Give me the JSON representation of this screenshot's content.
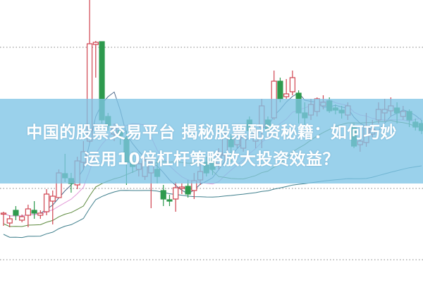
{
  "headline": {
    "line1": "中国的股票交易平台 揭秘股票配资秘籍：如何巧妙",
    "line2": "运用10倍杠杆策略放大投资效益？"
  },
  "colors": {
    "up": "#d0434f",
    "down": "#2e9a4e",
    "banner": "#7dc4e6",
    "ma_short": "#4e6a8c",
    "ma_mid": "#e39ad8",
    "ma_long": "#5d8a3e",
    "ma_longest": "#3f7f8c",
    "grid": "#9a9a9a"
  },
  "chart_data": {
    "type": "candlestick",
    "grid": "horizontal dotted",
    "candles_ohlc": [
      [
        9.8,
        9.8,
        10,
        8
      ],
      [
        8.4,
        9,
        9.5,
        7.8
      ],
      [
        10.2,
        9.5,
        10.8,
        8.8
      ],
      [
        8.8,
        9.3,
        9.6,
        8.5
      ],
      [
        9.5,
        10.4,
        11,
        7.8
      ],
      [
        10.2,
        9.8,
        11.5,
        9
      ],
      [
        9.5,
        9.8,
        10.2,
        9
      ],
      [
        10,
        12.5,
        13.2,
        9.5
      ],
      [
        11.5,
        12.2,
        13,
        8.2
      ],
      [
        12,
        15.5,
        16,
        12
      ],
      [
        15.4,
        14.8,
        18.2,
        14.2
      ],
      [
        14.7,
        14,
        15.5,
        12.7
      ],
      [
        13.8,
        17.2,
        17.8,
        13.2
      ],
      [
        17,
        18.5,
        20,
        16
      ],
      [
        20,
        33.8,
        40,
        19.8
      ],
      [
        33.7,
        34,
        34.2,
        29
      ],
      [
        34.1,
        23,
        34.1,
        22.5
      ],
      [
        23.5,
        22.2,
        24,
        21.5
      ],
      [
        21,
        21.8,
        22.5,
        20
      ],
      [
        21.5,
        20.8,
        22.2,
        19.5
      ],
      [
        20.5,
        17,
        21.5,
        13.8
      ],
      [
        17,
        16.4,
        18.5,
        15.5
      ],
      [
        16,
        16.8,
        17.5,
        15
      ],
      [
        15,
        17.2,
        17.8,
        14.5
      ],
      [
        15.5,
        17,
        17.4,
        10.5
      ],
      [
        16,
        15,
        17.5,
        14
      ],
      [
        13,
        11.8,
        13.8,
        10.8
      ],
      [
        11.7,
        11.5,
        12.4,
        10.8
      ],
      [
        11.8,
        13.4,
        14.2,
        10
      ],
      [
        13.3,
        13.5,
        14,
        12.5
      ],
      [
        13.6,
        12.5,
        14.5,
        12
      ],
      [
        13,
        14.4,
        15.5,
        11.8
      ],
      [
        14.5,
        15.7,
        17,
        13.8
      ],
      [
        17,
        15.5,
        17.8,
        15
      ],
      [
        17.5,
        16,
        18.2,
        15.2
      ],
      [
        16.8,
        18.2,
        19,
        16
      ],
      [
        18,
        20.5,
        21.5,
        17.2
      ],
      [
        20.5,
        19.2,
        21,
        17
      ],
      [
        19.5,
        20.8,
        21.5,
        19
      ],
      [
        19,
        20.5,
        21.2,
        18.5
      ],
      [
        23,
        21.5,
        23.5,
        21
      ],
      [
        20,
        21.5,
        22,
        19
      ],
      [
        22,
        25,
        26,
        19
      ],
      [
        23,
        21.5,
        23.5,
        21
      ],
      [
        23.3,
        28.5,
        30,
        23
      ],
      [
        28.5,
        26,
        29,
        25.5
      ],
      [
        26.3,
        26.7,
        28.8,
        26
      ],
      [
        27,
        29,
        30,
        26.5
      ],
      [
        26.8,
        24,
        27.2,
        22.5
      ],
      [
        24,
        23.3,
        25.5,
        22
      ],
      [
        23.7,
        25.2,
        26,
        23
      ],
      [
        24.2,
        26,
        26.2,
        23.5
      ],
      [
        25,
        25.5,
        26.5,
        24.5
      ],
      [
        25.7,
        24.3,
        26.2,
        24
      ],
      [
        24.7,
        24.4,
        25.2,
        23.8
      ],
      [
        24.4,
        24,
        25,
        23.2
      ],
      [
        23.7,
        25,
        25.5,
        23
      ],
      [
        22,
        19.3,
        22.5,
        19
      ],
      [
        19.5,
        20,
        21,
        18.5
      ],
      [
        19.8,
        22,
        24,
        19.2
      ],
      [
        21,
        21.7,
        23,
        20.5
      ],
      [
        23,
        24.5,
        25.5,
        22.5
      ],
      [
        24,
        24.5,
        26,
        22.8
      ],
      [
        24.3,
        25,
        26.2,
        23.5
      ],
      [
        24.7,
        24,
        25.5,
        22.5
      ],
      [
        23.5,
        24.2,
        25,
        23
      ],
      [
        24.2,
        23,
        24.5,
        22
      ],
      [
        22.7,
        22,
        23.2,
        21.5
      ],
      [
        22.5,
        21.5,
        23,
        21
      ]
    ],
    "moving_averages": [
      5,
      10,
      20,
      60
    ]
  }
}
